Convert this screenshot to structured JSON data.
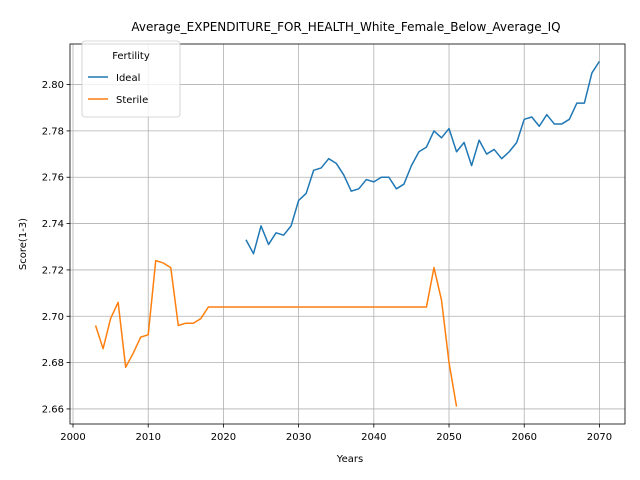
{
  "chart_data": {
    "type": "line",
    "title": "Average_EXPENDITURE_FOR_HEALTH_White_Female_Below_Average_IQ",
    "xlabel": "Years",
    "ylabel": "Score(1-3)",
    "xlim": [
      1999.6,
      2073.4
    ],
    "ylim": [
      2.6535,
      2.8175
    ],
    "x_ticks": [
      2000,
      2010,
      2020,
      2030,
      2040,
      2050,
      2060,
      2070
    ],
    "y_ticks": [
      2.66,
      2.68,
      2.7,
      2.72,
      2.74,
      2.76,
      2.78,
      2.8
    ],
    "grid": true,
    "legend": {
      "title": "Fertility",
      "placement": "top-left"
    },
    "series": [
      {
        "name": "Ideal",
        "color": "#1f77b4",
        "x": [
          2023,
          2024,
          2025,
          2026,
          2027,
          2028,
          2029,
          2030,
          2031,
          2032,
          2033,
          2034,
          2035,
          2036,
          2037,
          2038,
          2039,
          2040,
          2041,
          2042,
          2043,
          2044,
          2045,
          2046,
          2047,
          2048,
          2049,
          2050,
          2051,
          2052,
          2053,
          2054,
          2055,
          2056,
          2057,
          2058,
          2059,
          2060,
          2061,
          2062,
          2063,
          2064,
          2065,
          2066,
          2067,
          2068,
          2069,
          2070
        ],
        "values": [
          2.733,
          2.727,
          2.739,
          2.731,
          2.736,
          2.735,
          2.739,
          2.75,
          2.753,
          2.763,
          2.764,
          2.768,
          2.766,
          2.761,
          2.754,
          2.755,
          2.759,
          2.758,
          2.76,
          2.76,
          2.755,
          2.757,
          2.765,
          2.771,
          2.773,
          2.78,
          2.777,
          2.781,
          2.771,
          2.775,
          2.765,
          2.776,
          2.77,
          2.772,
          2.768,
          2.771,
          2.775,
          2.785,
          2.786,
          2.782,
          2.787,
          2.783,
          2.783,
          2.785,
          2.792,
          2.792,
          2.805,
          2.81
        ]
      },
      {
        "name": "Sterile",
        "color": "#ff7f0e",
        "x": [
          2003,
          2004,
          2005,
          2006,
          2007,
          2008,
          2009,
          2010,
          2011,
          2012,
          2013,
          2014,
          2015,
          2016,
          2017,
          2018,
          2019,
          2020,
          2021,
          2022,
          2023,
          2024,
          2025,
          2026,
          2027,
          2028,
          2029,
          2030,
          2031,
          2032,
          2033,
          2034,
          2035,
          2036,
          2037,
          2038,
          2039,
          2040,
          2041,
          2042,
          2043,
          2044,
          2045,
          2046,
          2047,
          2048,
          2049,
          2050,
          2051
        ],
        "values": [
          2.696,
          2.686,
          2.699,
          2.706,
          2.678,
          2.684,
          2.691,
          2.692,
          2.724,
          2.723,
          2.721,
          2.696,
          2.697,
          2.697,
          2.699,
          2.704,
          2.704,
          2.704,
          2.704,
          2.704,
          2.704,
          2.704,
          2.704,
          2.704,
          2.704,
          2.704,
          2.704,
          2.704,
          2.704,
          2.704,
          2.704,
          2.704,
          2.704,
          2.704,
          2.704,
          2.704,
          2.704,
          2.704,
          2.704,
          2.704,
          2.704,
          2.704,
          2.704,
          2.704,
          2.704,
          2.721,
          2.707,
          2.68,
          2.661
        ]
      }
    ]
  }
}
